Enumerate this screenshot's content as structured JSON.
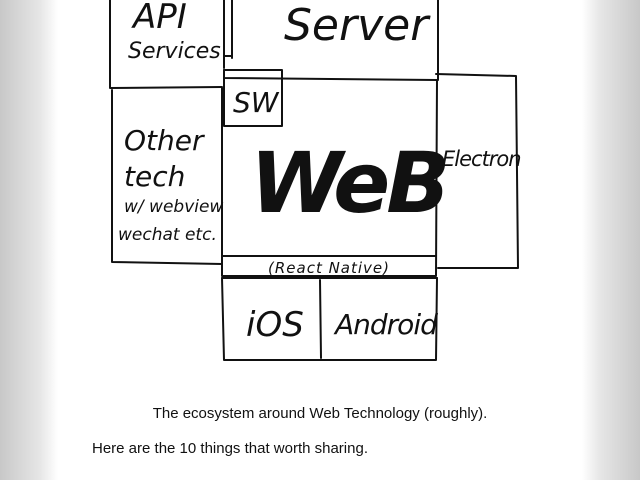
{
  "diagram": {
    "boxes": {
      "api_services": [
        "API",
        "Services"
      ],
      "server": "Server",
      "sw": "SW",
      "web": "WeB",
      "other_tech": [
        "Other",
        "tech",
        "w/ webview",
        "wechat etc."
      ],
      "electron": "Electron",
      "react_native": "(React Native)",
      "ios": "iOS",
      "android": "Android"
    }
  },
  "caption": "The ecosystem around Web Technology (roughly).",
  "body": {
    "intro": "Here are the 10 things that worth sharing."
  }
}
